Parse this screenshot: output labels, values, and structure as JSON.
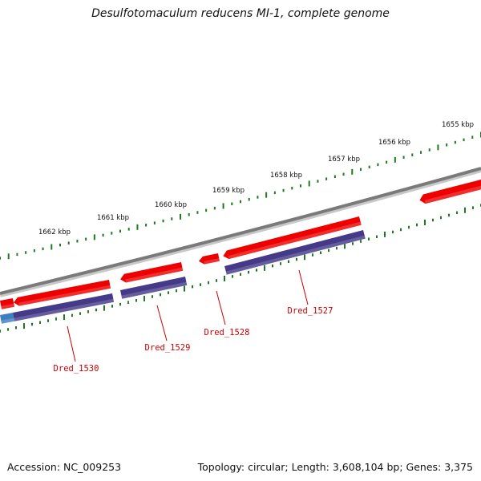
{
  "title": "Desulfotomaculum reducens MI-1, complete genome",
  "footer": {
    "accession": "Accession: NC_009253",
    "topology": "Topology: circular; Length: 3,608,104 bp; Genes: 3,375"
  },
  "colors": {
    "backbone": "#7a7a7a",
    "cds": "#ee0000",
    "gene": "#443a88",
    "gene_highlight": "#3d7fc0",
    "ticks": "#1e7a1e",
    "gene_label": "#cc0000"
  },
  "scale_labels": [
    {
      "id": "1655",
      "text": "1655 kbp"
    },
    {
      "id": "1656",
      "text": "1656 kbp"
    },
    {
      "id": "1657",
      "text": "1657 kbp"
    },
    {
      "id": "1658",
      "text": "1658 kbp"
    },
    {
      "id": "1659",
      "text": "1659 kbp"
    },
    {
      "id": "1660",
      "text": "1660 kbp"
    },
    {
      "id": "1661",
      "text": "1661 kbp"
    },
    {
      "id": "1662",
      "text": "1662 kbp"
    }
  ],
  "genes": [
    {
      "id": "Dred_1527",
      "label": "Dred_1527"
    },
    {
      "id": "Dred_1528",
      "label": "Dred_1528"
    },
    {
      "id": "Dred_1529",
      "label": "Dred_1529"
    },
    {
      "id": "Dred_1530",
      "label": "Dred_1530"
    }
  ]
}
